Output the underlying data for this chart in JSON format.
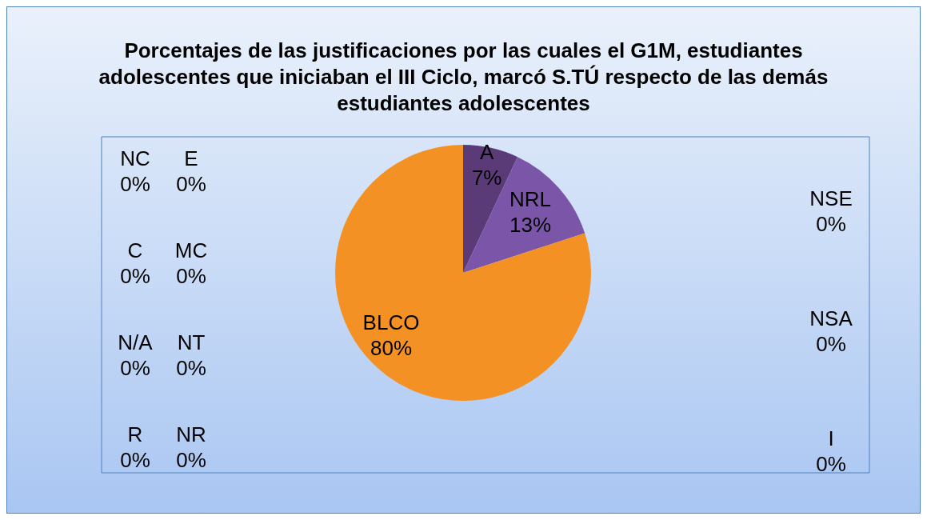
{
  "chart_data": {
    "type": "pie",
    "title": "Porcentajes de las justificaciones por las cuales el G1M, estudiantes adolescentes que iniciaban el III Ciclo, marcó S.TÚ respecto de las demás estudiantes adolescentes",
    "categories": [
      "A",
      "NRL",
      "NSE",
      "NSA",
      "I",
      "BLCO",
      "NR",
      "R",
      "NT",
      "N/A",
      "MC",
      "C",
      "E",
      "NC"
    ],
    "values": [
      7,
      13,
      0,
      0,
      0,
      80,
      0,
      0,
      0,
      0,
      0,
      0,
      0,
      0
    ],
    "colors": [
      "#5b3a78",
      "#7b56a8",
      "#4f81bd",
      "#c0504d",
      "#9bbb59",
      "#f39125",
      "#4bacc6",
      "#8064a2",
      "#f79646",
      "#2c4d75",
      "#772c2a",
      "#5f7530",
      "#276a7c",
      "#4d3b62"
    ],
    "value_labels": [
      "7%",
      "13%",
      "0%",
      "0%",
      "0%",
      "80%",
      "0%",
      "0%",
      "0%",
      "0%",
      "0%",
      "0%",
      "0%",
      "0%"
    ],
    "legend": false
  }
}
